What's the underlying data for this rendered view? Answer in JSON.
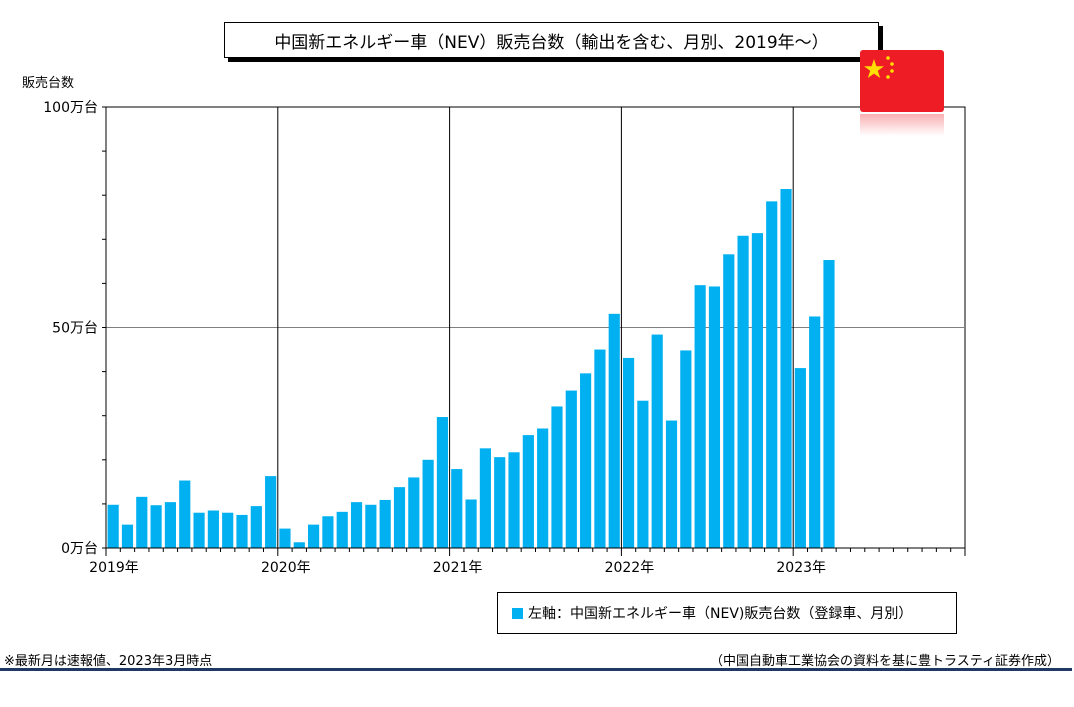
{
  "title": "中国新エネルギー車（NEV）販売台数（輸出を含む、月別、2019年～）",
  "unit_label": "販売台数",
  "legend": {
    "label": "左軸：中国新エネルギー車（NEV)販売台数（登録車、月別）"
  },
  "notes": {
    "left": "※最新月は速報値、2023年3月時点",
    "right": "（中国自動車工業協会の資料を基に豊トラスティ証券作成）"
  },
  "colors": {
    "bar": "#00b0f0",
    "flag_red": "#ee1c25",
    "flag_star": "#ffde00",
    "rule": "#1f3864"
  },
  "chart_data": {
    "type": "bar",
    "yunit": "万台",
    "ylim": [
      0,
      100
    ],
    "y_ticks": [
      {
        "value": 0,
        "label": "0万台"
      },
      {
        "value": 50,
        "label": "50万台"
      },
      {
        "value": 100,
        "label": "100万台"
      }
    ],
    "year_labels": [
      "2019年",
      "2020年",
      "2021年",
      "2022年",
      "2023年"
    ],
    "months_total": 60,
    "grid": "horizontal at 50, vertical at year boundaries",
    "values": [
      9.8,
      5.3,
      11.6,
      9.7,
      10.4,
      15.3,
      8.0,
      8.5,
      8.0,
      7.5,
      9.5,
      16.3,
      4.4,
      1.3,
      5.3,
      7.2,
      8.2,
      10.4,
      9.8,
      10.9,
      13.8,
      16.0,
      20.0,
      29.7,
      17.9,
      11.0,
      22.6,
      20.6,
      21.7,
      25.6,
      27.1,
      32.1,
      35.7,
      39.6,
      45.0,
      53.1,
      43.1,
      33.4,
      48.4,
      28.9,
      44.8,
      59.6,
      59.3,
      66.6,
      70.8,
      71.4,
      78.6,
      81.4,
      40.8,
      52.5,
      65.3
    ]
  }
}
